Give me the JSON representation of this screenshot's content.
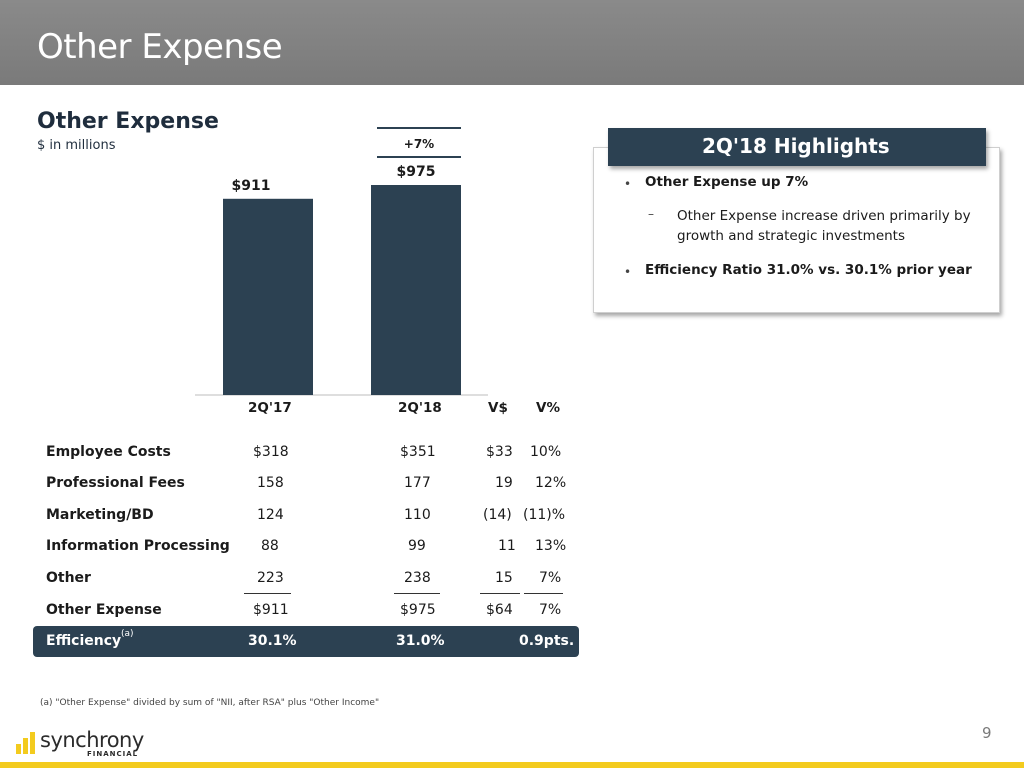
{
  "header": {
    "title": "Other Expense"
  },
  "chart_data": {
    "type": "bar",
    "title": "Other Expense",
    "subtitle": "$ in millions",
    "categories": [
      "2Q'17",
      "2Q'18"
    ],
    "values": [
      911,
      975
    ],
    "data_labels": [
      "$911",
      "$975"
    ],
    "change_label": "+7%",
    "ylim": [
      0,
      1000
    ],
    "colors": {
      "bar": "#2c4152"
    },
    "grid": false,
    "legend": "none"
  },
  "highlights": {
    "title": "2Q'18 Highlights",
    "items": [
      {
        "bullet": "•",
        "text": "Other Expense up 7%"
      },
      {
        "bullet": "–",
        "line1": "Other Expense increase driven primarily by",
        "line2": "growth and strategic investments"
      },
      {
        "bullet": "•",
        "text": "Efficiency Ratio 31.0% vs. 30.1% prior year"
      }
    ]
  },
  "table": {
    "headers": [
      "2Q'17",
      "2Q'18",
      "V$",
      "V%"
    ],
    "rows": [
      {
        "label": "Employee Costs",
        "q17": "$318",
        "q18": "$351",
        "vd": "$33",
        "vp": "10%"
      },
      {
        "label": "Professional Fees",
        "q17": "158",
        "q18": "177",
        "vd": "19",
        "vp": "12%"
      },
      {
        "label": "Marketing/BD",
        "q17": "124",
        "q18": "110",
        "vd": "(14)",
        "vp": "(11)%"
      },
      {
        "label": "Information Processing",
        "q17": "88",
        "q18": "99",
        "vd": "11",
        "vp": "13%"
      },
      {
        "label": "Other",
        "q17": "223",
        "q18": "238",
        "vd": "15",
        "vp": "7%"
      },
      {
        "label": "Other Expense",
        "q17": "$911",
        "q18": "$975",
        "vd": "$64",
        "vp": "7%"
      }
    ],
    "efficiency": {
      "label": "Efficiency",
      "sup": "(a)",
      "q17": "30.1%",
      "q18": "31.0%",
      "change": "0.9pts."
    }
  },
  "footnote": "(a) \"Other Expense\" divided by sum of \"NII, after RSA\" plus \"Other Income\"",
  "page_number": "9",
  "logo": {
    "name": "synchrony",
    "sub": "FINANCIAL",
    "colors": {
      "accent": "#f3cb1e",
      "text": "#2b2b2b"
    }
  }
}
